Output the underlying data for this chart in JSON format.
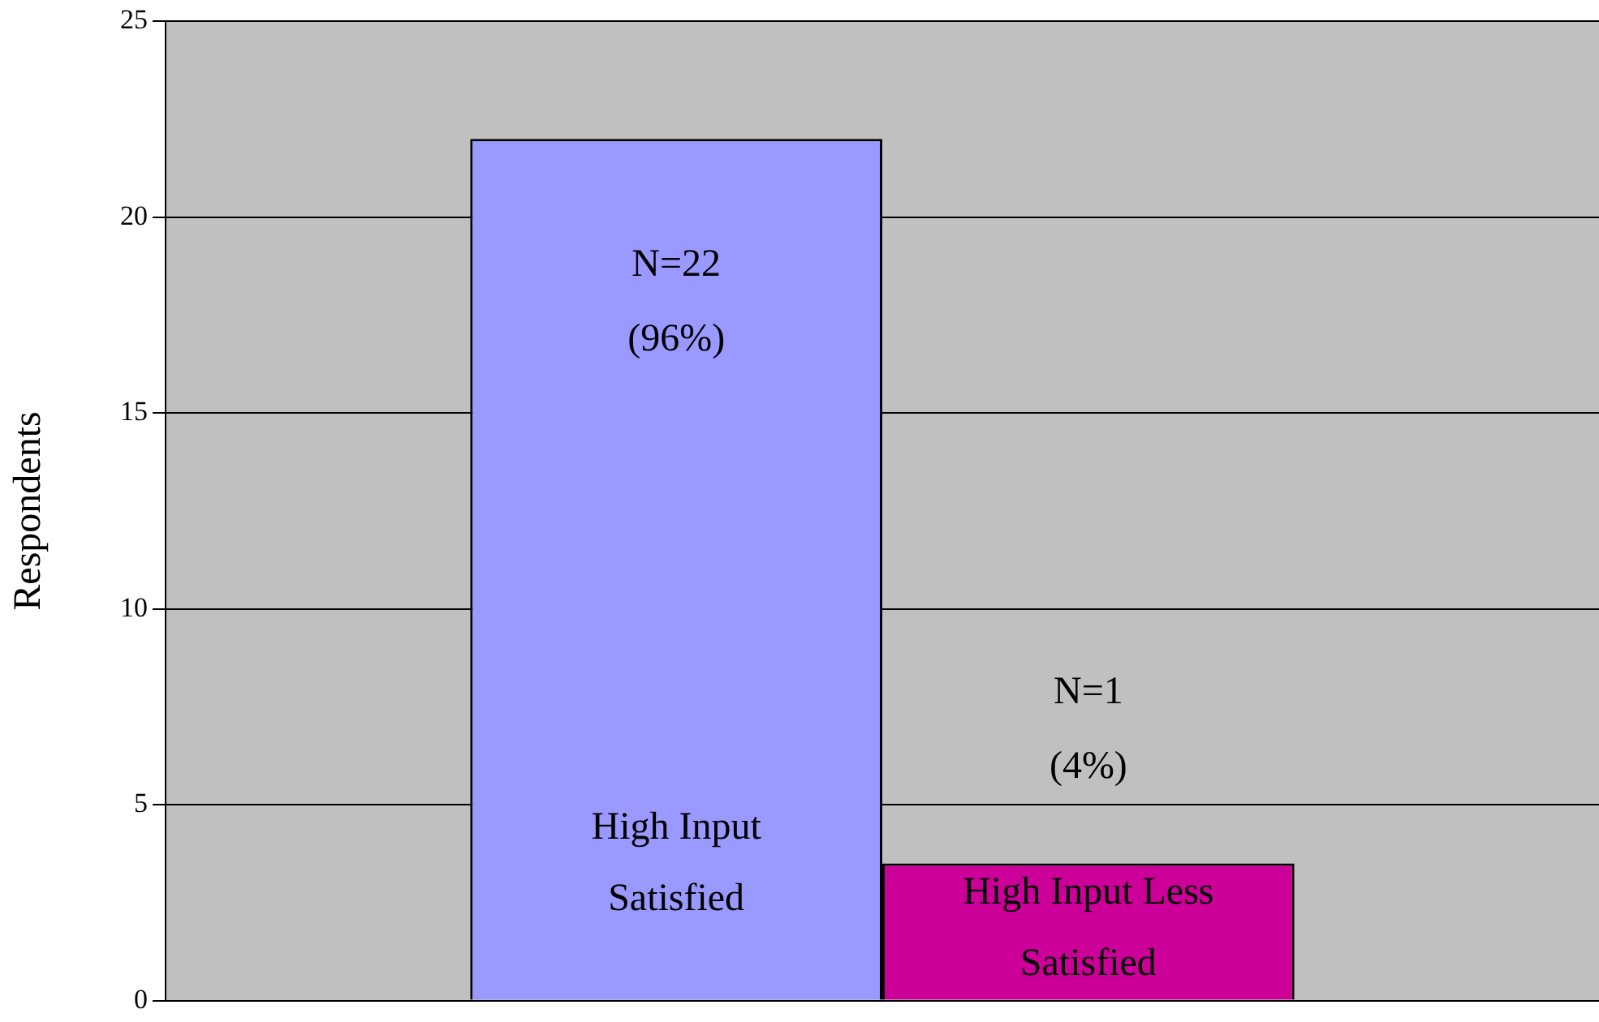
{
  "chart_data": {
    "type": "bar",
    "ylabel": "Respondents",
    "categories": [
      null
    ],
    "series": [
      {
        "name": "High Input Satisfied",
        "color": "#9999ff",
        "values": [
          22
        ]
      },
      {
        "name": "High Input Less Satisfied",
        "color": "#cc0099",
        "values": [
          3.5
        ]
      }
    ],
    "annotations": [
      "N=22 (96%)",
      "N=1 (4%)"
    ],
    "ylim": [
      0,
      25
    ],
    "yticks": [
      0,
      5,
      10,
      15,
      20,
      25
    ],
    "grid": "y",
    "legend": false
  }
}
